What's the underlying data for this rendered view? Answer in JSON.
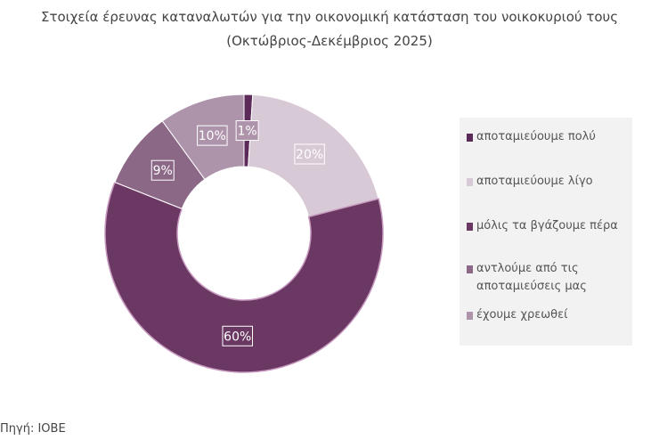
{
  "chart_data": {
    "type": "pie",
    "variant": "donut",
    "title": "Στοιχεία έρευνας καταναλωτών για την οικονομική κατάσταση του νοικοκυριού τους (Οκτώβριος-Δεκέμβριος 2025)",
    "categories": [
      "αποταμιεύουμε πολύ",
      "αποταμιεύουμε λίγο",
      "μόλις τα βγάζουμε πέρα",
      "αντλούμε από τις αποταμιεύσεις μας",
      "έχουμε χρεωθεί"
    ],
    "values": [
      1,
      20,
      60,
      9,
      10
    ],
    "data_labels": [
      "1%",
      "20%",
      "60%",
      "9%",
      "10%"
    ],
    "colors": [
      "#5b2a59",
      "#d8c9d6",
      "#6b3863",
      "#8c6887",
      "#ae94ab"
    ],
    "legend_position": "right"
  },
  "source": "Πηγή: ΙΟΒΕ"
}
